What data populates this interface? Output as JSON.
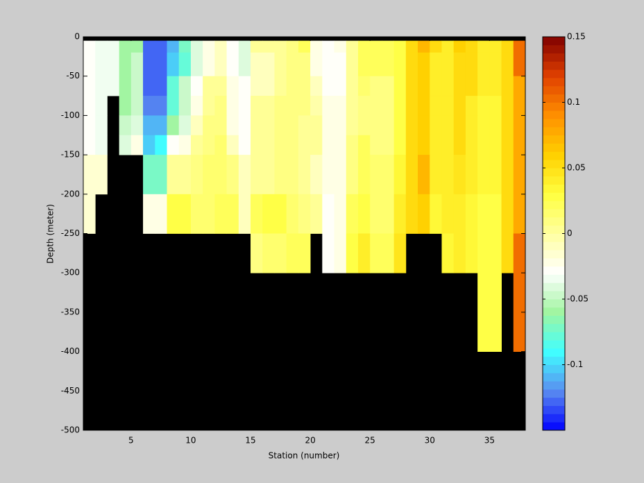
{
  "chart_data": {
    "type": "heatmap",
    "xlabel": "Station (number)",
    "ylabel": "Depth (meter)",
    "x": [
      1,
      2,
      3,
      4,
      5,
      6,
      7,
      8,
      9,
      10,
      11,
      12,
      13,
      14,
      15,
      16,
      17,
      18,
      19,
      20,
      21,
      22,
      23,
      24,
      25,
      26,
      27,
      28,
      29,
      30,
      31,
      32,
      33,
      34,
      35,
      36,
      37,
      38
    ],
    "y": [
      0,
      -5,
      -20,
      -50,
      -75,
      -100,
      -125,
      -150,
      -200,
      -250,
      -300,
      -400,
      -500
    ],
    "values": [
      [
        null,
        null,
        null,
        null,
        null,
        null,
        null,
        null,
        null,
        null,
        null,
        null,
        null,
        null,
        null,
        null,
        null,
        null,
        null,
        null,
        null,
        null,
        null,
        null,
        null,
        null,
        null,
        null,
        null,
        null,
        null,
        null,
        null,
        null,
        null,
        null,
        null
      ],
      [
        -0.03,
        -0.035,
        -0.035,
        -0.06,
        -0.06,
        -0.13,
        -0.13,
        -0.11,
        -0.07,
        -0.04,
        -0.02,
        -0.01,
        -0.03,
        -0.04,
        0,
        0,
        0.005,
        0.01,
        0.02,
        -0.02,
        -0.03,
        -0.02,
        0,
        0.02,
        0.02,
        0.02,
        0.03,
        0.05,
        0.07,
        0.05,
        0.04,
        0.06,
        0.05,
        0.04,
        0.04,
        0.05,
        0.1
      ],
      [
        -0.03,
        -0.035,
        -0.035,
        -0.06,
        -0.05,
        -0.13,
        -0.13,
        -0.1,
        -0.08,
        -0.04,
        -0.02,
        -0.01,
        -0.03,
        -0.04,
        -0.01,
        -0.01,
        0.005,
        0.01,
        0.01,
        -0.02,
        -0.03,
        -0.03,
        0.005,
        0.02,
        0.02,
        0.02,
        0.03,
        0.05,
        0.06,
        0.04,
        0.04,
        0.05,
        0.05,
        0.04,
        0.04,
        0.05,
        0.1
      ],
      [
        -0.03,
        -0.035,
        -0.035,
        -0.06,
        -0.05,
        -0.13,
        -0.13,
        -0.08,
        -0.05,
        -0.03,
        0,
        0.005,
        -0.02,
        -0.03,
        -0.01,
        -0.01,
        0.005,
        0.01,
        0.01,
        -0.01,
        -0.03,
        -0.03,
        0,
        0.015,
        0.01,
        0.01,
        0.03,
        0.05,
        0.06,
        0.04,
        0.04,
        0.05,
        0.05,
        0.04,
        0.04,
        0.05,
        0.08
      ],
      [
        -0.03,
        -0.035,
        null,
        -0.06,
        -0.05,
        -0.12,
        -0.12,
        -0.08,
        -0.05,
        -0.02,
        0,
        0.01,
        -0.02,
        -0.03,
        0,
        0.005,
        0.01,
        0.01,
        0.01,
        -0.005,
        -0.02,
        -0.02,
        0,
        0.01,
        0.01,
        0.01,
        0.03,
        0.05,
        0.06,
        0.04,
        0.04,
        0.05,
        0.04,
        0.035,
        0.035,
        0.05,
        0.08
      ],
      [
        -0.03,
        -0.035,
        null,
        -0.05,
        -0.04,
        -0.11,
        -0.11,
        -0.06,
        -0.04,
        -0.01,
        0.01,
        0.01,
        -0.02,
        -0.03,
        0,
        0.005,
        0.01,
        0.01,
        0.005,
        0,
        -0.02,
        -0.02,
        0,
        0.01,
        0.01,
        0.01,
        0.03,
        0.05,
        0.06,
        0.04,
        0.04,
        0.05,
        0.04,
        0.035,
        0.035,
        0.05,
        0.08
      ],
      [
        -0.03,
        -0.035,
        null,
        -0.04,
        -0.02,
        -0.1,
        -0.09,
        -0.03,
        -0.02,
        0,
        0.01,
        0.015,
        -0.01,
        -0.03,
        0,
        0.005,
        0.01,
        0.01,
        0.005,
        0,
        -0.02,
        -0.02,
        0.01,
        0.02,
        0.01,
        0.01,
        0.03,
        0.05,
        0.06,
        0.04,
        0.04,
        0.05,
        0.04,
        0.035,
        0.035,
        0.05,
        0.08
      ],
      [
        -0.015,
        -0.015,
        null,
        null,
        null,
        -0.07,
        -0.07,
        0,
        0.005,
        0.01,
        0.015,
        0.015,
        0.01,
        -0.01,
        0,
        0.005,
        0.01,
        0.01,
        0.005,
        -0.01,
        -0.02,
        -0.02,
        0.01,
        0.02,
        0.015,
        0.015,
        0.035,
        0.05,
        0.07,
        0.04,
        0.04,
        0.045,
        0.04,
        0.035,
        0.035,
        0.05,
        0.08
      ],
      [
        -0.015,
        null,
        null,
        null,
        null,
        -0.02,
        -0.02,
        0.03,
        0.03,
        0.015,
        0.015,
        0.02,
        0.02,
        -0.01,
        0.02,
        0.025,
        0.025,
        0.015,
        0.01,
        0.005,
        -0.03,
        -0.025,
        0.02,
        0.03,
        0.015,
        0.015,
        0.04,
        0.05,
        0.06,
        0.035,
        0.04,
        0.04,
        0.035,
        0.03,
        0.03,
        0.05,
        0.08
      ],
      [
        null,
        null,
        null,
        null,
        null,
        null,
        null,
        null,
        null,
        null,
        null,
        null,
        null,
        null,
        0.01,
        0.015,
        0.015,
        0.02,
        0.02,
        null,
        -0.03,
        -0.02,
        0.03,
        0.04,
        0.02,
        0.02,
        0.045,
        null,
        null,
        null,
        0.035,
        0.04,
        0.035,
        0.03,
        0.03,
        0.05,
        0.1
      ],
      [
        null,
        null,
        null,
        null,
        null,
        null,
        null,
        null,
        null,
        null,
        null,
        null,
        null,
        null,
        null,
        null,
        null,
        null,
        null,
        null,
        null,
        null,
        null,
        null,
        null,
        null,
        null,
        null,
        null,
        null,
        null,
        null,
        null,
        0.03,
        0.03,
        null,
        0.1
      ],
      [
        null,
        null,
        null,
        null,
        null,
        null,
        null,
        null,
        null,
        null,
        null,
        null,
        null,
        null,
        null,
        null,
        null,
        null,
        null,
        null,
        null,
        null,
        null,
        null,
        null,
        null,
        null,
        null,
        null,
        null,
        null,
        null,
        null,
        null,
        null,
        null,
        null
      ]
    ],
    "xlim": [
      1,
      38
    ],
    "xticks": [
      5,
      10,
      15,
      20,
      25,
      30,
      35
    ],
    "ylim": [
      -500,
      0
    ],
    "yticks": [
      0,
      -50,
      -100,
      -150,
      -200,
      -250,
      -300,
      -350,
      -400,
      -450,
      -500
    ],
    "clim": [
      -0.15,
      0.15
    ],
    "cticks": [
      -0.1,
      -0.05,
      0,
      0.05,
      0.1,
      0.15
    ],
    "colormap": [
      "#0000ff",
      "#5a8cf0",
      "#40ffff",
      "#a0f5a0",
      "#ffffff",
      "#ffffa0",
      "#ffff40",
      "#ffd000",
      "#ff9000",
      "#e04000",
      "#800000"
    ],
    "colormap_levels": 48,
    "nan_color": "#000000"
  }
}
